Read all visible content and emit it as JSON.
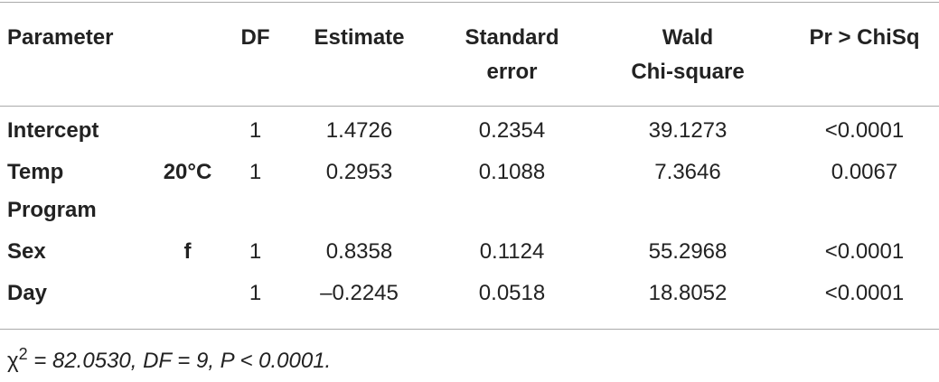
{
  "table": {
    "header": [
      "Parameter",
      null,
      "DF",
      "Estimate",
      [
        "Standard",
        "error"
      ],
      [
        "Wald",
        "Chi-square"
      ],
      "Pr > ChiSq"
    ],
    "rows": [
      [
        "Intercept",
        null,
        1,
        "1.4726",
        "0.2354",
        "39.1273",
        "<0.0001"
      ],
      [
        "Temp Program",
        "20°C",
        1,
        "0.2953",
        "0.1088",
        "7.3646",
        "0.0067"
      ],
      [
        "Sex",
        "f",
        1,
        "0.8358",
        "0.1124",
        "55.2968",
        "<0.0001"
      ],
      [
        "Day",
        null,
        1,
        "–0.2245",
        "0.0518",
        "18.8052",
        "<0.0001"
      ]
    ]
  },
  "footnote": {
    "symbol": "χ",
    "superscript": "2",
    "text": " = 82.0530, DF = 9, P < 0.0001."
  }
}
